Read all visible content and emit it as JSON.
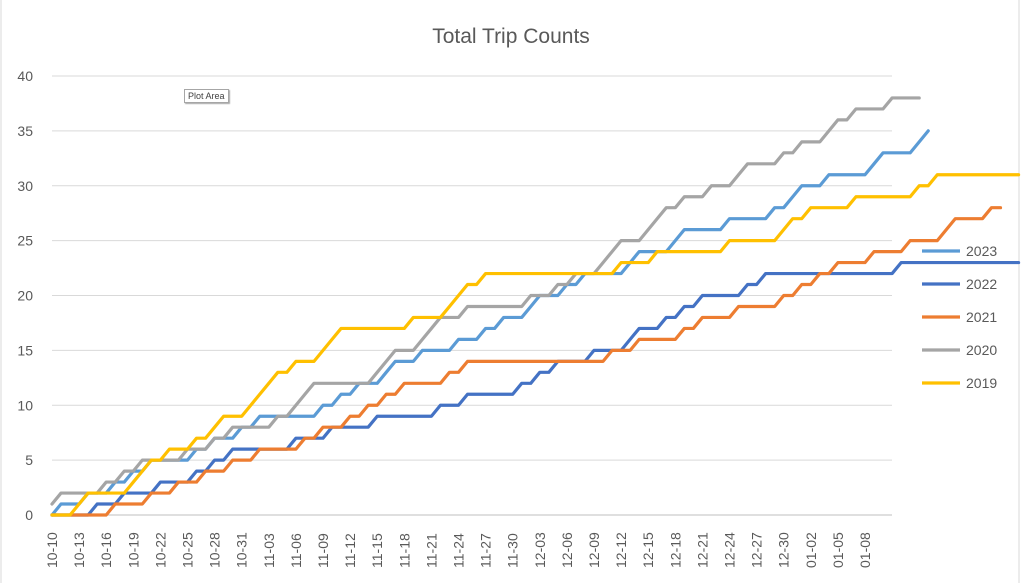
{
  "chart_data": {
    "type": "line",
    "title": "Total Trip Counts",
    "xlabel": "",
    "ylabel": "",
    "ylim": [
      0,
      40
    ],
    "y_ticks": [
      0,
      5,
      10,
      15,
      20,
      25,
      30,
      35,
      40
    ],
    "grid": true,
    "legend_position": "right",
    "tooltip": "Plot Area",
    "x_tick_labels": [
      "10-10",
      "10-13",
      "10-16",
      "10-19",
      "10-22",
      "10-25",
      "10-28",
      "10-31",
      "11-03",
      "11-06",
      "11-09",
      "11-12",
      "11-15",
      "11-18",
      "11-21",
      "11-24",
      "11-27",
      "11-30",
      "12-03",
      "12-06",
      "12-09",
      "12-12",
      "12-15",
      "12-18",
      "12-21",
      "12-24",
      "12-27",
      "12-30",
      "01-02",
      "01-05",
      "01-08"
    ],
    "series": [
      {
        "name": "2023",
        "color": "#5b9bd5",
        "values": [
          0,
          1,
          1,
          1,
          2,
          2,
          2,
          3,
          3,
          4,
          4,
          5,
          5,
          5,
          5,
          5,
          6,
          6,
          7,
          7,
          7,
          8,
          8,
          9,
          9,
          9,
          9,
          9,
          9,
          9,
          10,
          10,
          11,
          11,
          12,
          12,
          12,
          13,
          14,
          14,
          14,
          15,
          15,
          15,
          15,
          16,
          16,
          16,
          17,
          17,
          18,
          18,
          18,
          19,
          20,
          20,
          20,
          21,
          21,
          22,
          22,
          22,
          22,
          22,
          23,
          24,
          24,
          24,
          24,
          25,
          26,
          26,
          26,
          26,
          26,
          27,
          27,
          27,
          27,
          27,
          28,
          28,
          29,
          30,
          30,
          30,
          31,
          31,
          31,
          31,
          31,
          32,
          33,
          33,
          33,
          33,
          34,
          35
        ]
      },
      {
        "name": "2022",
        "color": "#4472c4",
        "values": [
          0,
          0,
          0,
          0,
          0,
          1,
          1,
          1,
          2,
          2,
          2,
          2,
          3,
          3,
          3,
          3,
          4,
          4,
          5,
          5,
          6,
          6,
          6,
          6,
          6,
          6,
          6,
          7,
          7,
          7,
          7,
          8,
          8,
          8,
          8,
          8,
          9,
          9,
          9,
          9,
          9,
          9,
          9,
          10,
          10,
          10,
          11,
          11,
          11,
          11,
          11,
          11,
          12,
          12,
          13,
          13,
          14,
          14,
          14,
          14,
          15,
          15,
          15,
          15,
          16,
          17,
          17,
          17,
          18,
          18,
          19,
          19,
          20,
          20,
          20,
          20,
          20,
          21,
          21,
          22,
          22,
          22,
          22,
          22,
          22,
          22,
          22,
          22,
          22,
          22,
          22,
          22,
          22,
          22,
          23,
          23,
          23,
          23,
          23,
          23,
          23,
          23,
          23,
          23,
          23,
          23,
          23,
          23
        ]
      },
      {
        "name": "2021",
        "color": "#ed7d31",
        "values": [
          0,
          0,
          0,
          0,
          0,
          0,
          0,
          1,
          1,
          1,
          1,
          2,
          2,
          2,
          3,
          3,
          3,
          4,
          4,
          4,
          5,
          5,
          5,
          6,
          6,
          6,
          6,
          6,
          7,
          7,
          8,
          8,
          8,
          9,
          9,
          10,
          10,
          11,
          11,
          12,
          12,
          12,
          12,
          12,
          13,
          13,
          14,
          14,
          14,
          14,
          14,
          14,
          14,
          14,
          14,
          14,
          14,
          14,
          14,
          14,
          14,
          14,
          15,
          15,
          15,
          16,
          16,
          16,
          16,
          16,
          17,
          17,
          18,
          18,
          18,
          18,
          19,
          19,
          19,
          19,
          19,
          20,
          20,
          21,
          21,
          22,
          22,
          23,
          23,
          23,
          23,
          24,
          24,
          24,
          24,
          25,
          25,
          25,
          25,
          26,
          27,
          27,
          27,
          27,
          28,
          28
        ]
      },
      {
        "name": "2020",
        "color": "#a5a5a5",
        "values": [
          1,
          2,
          2,
          2,
          2,
          2,
          3,
          3,
          4,
          4,
          5,
          5,
          5,
          5,
          5,
          6,
          6,
          6,
          7,
          7,
          8,
          8,
          8,
          8,
          8,
          9,
          9,
          10,
          11,
          12,
          12,
          12,
          12,
          12,
          12,
          12,
          13,
          14,
          15,
          15,
          15,
          16,
          17,
          18,
          18,
          18,
          19,
          19,
          19,
          19,
          19,
          19,
          19,
          20,
          20,
          20,
          21,
          21,
          22,
          22,
          22,
          23,
          24,
          25,
          25,
          25,
          26,
          27,
          28,
          28,
          29,
          29,
          29,
          30,
          30,
          30,
          31,
          32,
          32,
          32,
          32,
          33,
          33,
          34,
          34,
          34,
          35,
          36,
          36,
          37,
          37,
          37,
          37,
          38,
          38,
          38,
          38
        ]
      },
      {
        "name": "2019",
        "color": "#ffc000",
        "values": [
          0,
          0,
          0,
          1,
          2,
          2,
          2,
          2,
          2,
          3,
          4,
          5,
          5,
          6,
          6,
          6,
          7,
          7,
          8,
          9,
          9,
          9,
          10,
          11,
          12,
          13,
          13,
          14,
          14,
          14,
          15,
          16,
          17,
          17,
          17,
          17,
          17,
          17,
          17,
          17,
          18,
          18,
          18,
          18,
          19,
          20,
          21,
          21,
          22,
          22,
          22,
          22,
          22,
          22,
          22,
          22,
          22,
          22,
          22,
          22,
          22,
          22,
          22,
          23,
          23,
          23,
          23,
          24,
          24,
          24,
          24,
          24,
          24,
          24,
          24,
          25,
          25,
          25,
          25,
          25,
          25,
          26,
          27,
          27,
          28,
          28,
          28,
          28,
          28,
          29,
          29,
          29,
          29,
          29,
          29,
          29,
          30,
          30,
          31,
          31,
          31,
          31,
          31,
          31,
          31,
          31,
          31,
          31
        ]
      }
    ]
  }
}
